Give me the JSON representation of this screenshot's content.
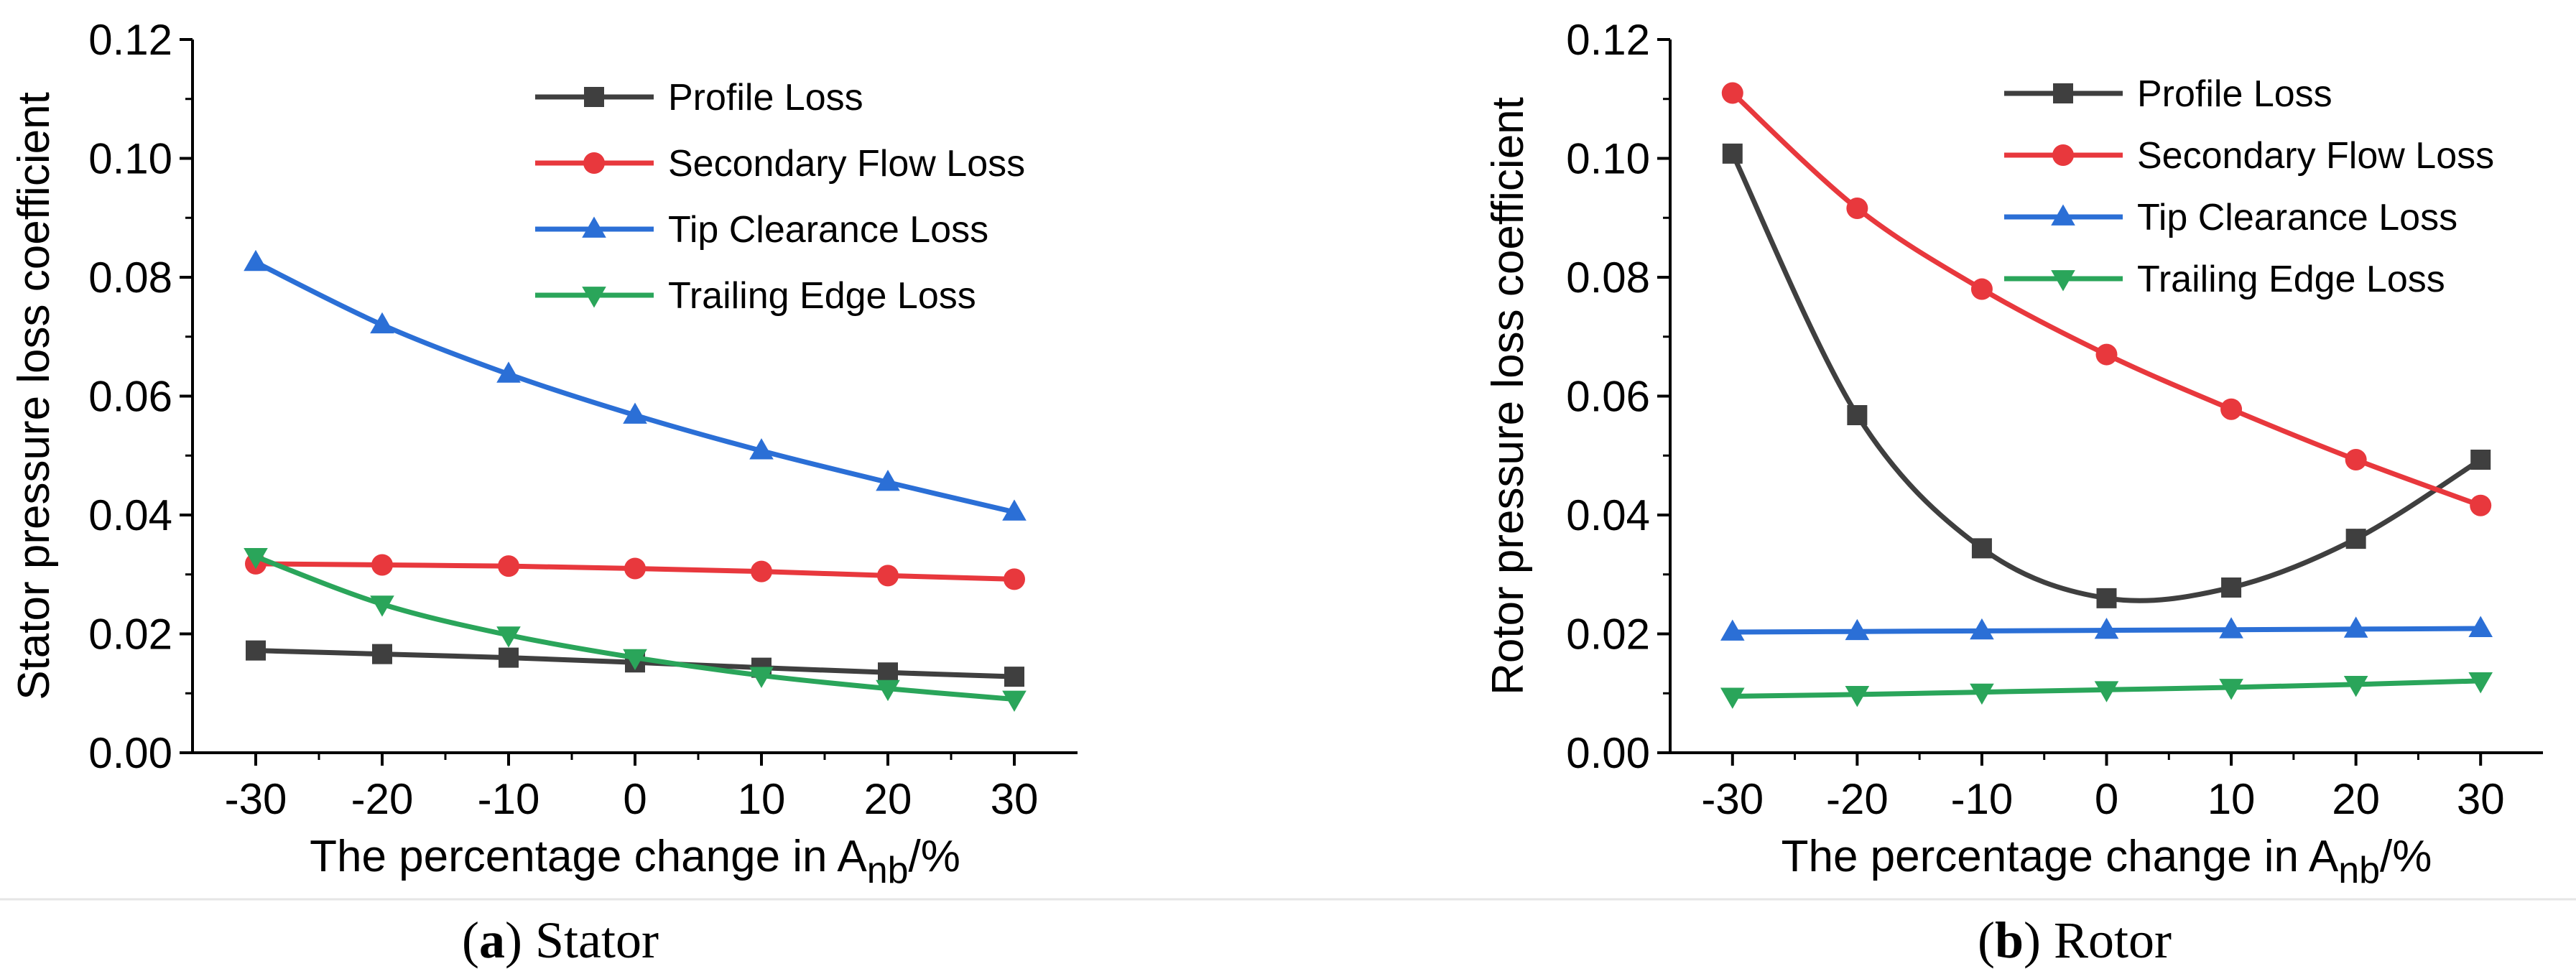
{
  "chart_data": [
    {
      "id": "stator",
      "type": "line",
      "x": [
        -30,
        -20,
        -10,
        0,
        10,
        20,
        30
      ],
      "xticks": [
        "-30",
        "-20",
        "-10",
        "0",
        "10",
        "20",
        "30"
      ],
      "xlim": [
        -35,
        35
      ],
      "ylim": [
        0,
        0.12
      ],
      "yticks": [
        "0.00",
        "0.02",
        "0.04",
        "0.06",
        "0.08",
        "0.10",
        "0.12"
      ],
      "ylabel": "Stator pressure loss coefficient",
      "xlabel_main": "The percentage change in A",
      "xlabel_sub": "nb",
      "xlabel_suffix": "/%",
      "legend_position": "top-right",
      "series": [
        {
          "name": "Profile Loss",
          "color": "#3f3f3f",
          "marker": "square",
          "values": [
            0.0172,
            0.0166,
            0.016,
            0.0152,
            0.0143,
            0.0135,
            0.0128
          ]
        },
        {
          "name": "Secondary Flow Loss",
          "color": "#e8383d",
          "marker": "circle",
          "values": [
            0.0318,
            0.0316,
            0.0314,
            0.031,
            0.0305,
            0.0298,
            0.0292
          ]
        },
        {
          "name": "Tip Clearance Loss",
          "color": "#2b6fd6",
          "marker": "triangle-up",
          "values": [
            0.0825,
            0.072,
            0.0637,
            0.0568,
            0.0508,
            0.0455,
            0.0405
          ]
        },
        {
          "name": "Trailing Edge Loss",
          "color": "#2aa55a",
          "marker": "triangle-down",
          "values": [
            0.033,
            0.025,
            0.0198,
            0.016,
            0.013,
            0.0108,
            0.009
          ]
        }
      ],
      "caption_label": "a",
      "caption_text": "Stator"
    },
    {
      "id": "rotor",
      "type": "line",
      "x": [
        -30,
        -20,
        -10,
        0,
        10,
        20,
        30
      ],
      "xticks": [
        "-30",
        "-20",
        "-10",
        "0",
        "10",
        "20",
        "30"
      ],
      "xlim": [
        -35,
        35
      ],
      "ylim": [
        0,
        0.12
      ],
      "yticks": [
        "0.00",
        "0.02",
        "0.04",
        "0.06",
        "0.08",
        "0.10",
        "0.12"
      ],
      "ylabel": "Rotor pressure loss coefficient",
      "xlabel_main": "The percentage change in A",
      "xlabel_sub": "nb",
      "xlabel_suffix": "/%",
      "legend_position": "top-right",
      "series": [
        {
          "name": "Profile Loss",
          "color": "#3f3f3f",
          "marker": "square",
          "values": [
            0.1008,
            0.0568,
            0.0344,
            0.026,
            0.0278,
            0.036,
            0.0493
          ]
        },
        {
          "name": "Secondary Flow Loss",
          "color": "#e8383d",
          "marker": "circle",
          "values": [
            0.111,
            0.0916,
            0.078,
            0.067,
            0.0578,
            0.0493,
            0.0416
          ]
        },
        {
          "name": "Tip Clearance Loss",
          "color": "#2b6fd6",
          "marker": "triangle-up",
          "values": [
            0.0203,
            0.0204,
            0.0205,
            0.0206,
            0.0207,
            0.0208,
            0.0209
          ]
        },
        {
          "name": "Trailing Edge Loss",
          "color": "#2aa55a",
          "marker": "triangle-down",
          "values": [
            0.0095,
            0.0098,
            0.0102,
            0.0106,
            0.011,
            0.0115,
            0.0121
          ]
        }
      ],
      "caption_label": "b",
      "caption_text": "Rotor"
    }
  ]
}
